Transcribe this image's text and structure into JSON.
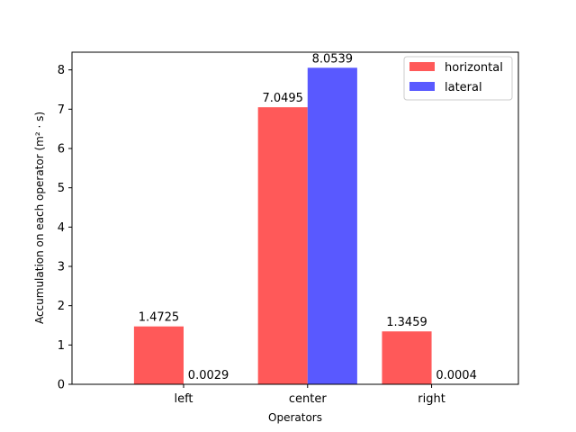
{
  "chart_data": {
    "type": "bar",
    "categories": [
      "left",
      "center",
      "right"
    ],
    "series": [
      {
        "name": "horizontal",
        "values": [
          1.4725,
          7.0495,
          1.3459
        ],
        "labels": [
          "1.4725",
          "7.0495",
          "1.3459"
        ],
        "color": "#ff5959"
      },
      {
        "name": "lateral",
        "values": [
          0.0029,
          8.0539,
          0.0004
        ],
        "labels": [
          "0.0029",
          "8.0539",
          "0.0004"
        ],
        "color": "#5959ff"
      }
    ],
    "title": "",
    "xlabel": "Operators",
    "ylabel": "Accumulation on each operator (m² · s)",
    "ylim": [
      0,
      8.45
    ],
    "yticks": [
      0,
      1,
      2,
      3,
      4,
      5,
      6,
      7,
      8
    ],
    "grid": false,
    "legend_position": "top-right"
  }
}
